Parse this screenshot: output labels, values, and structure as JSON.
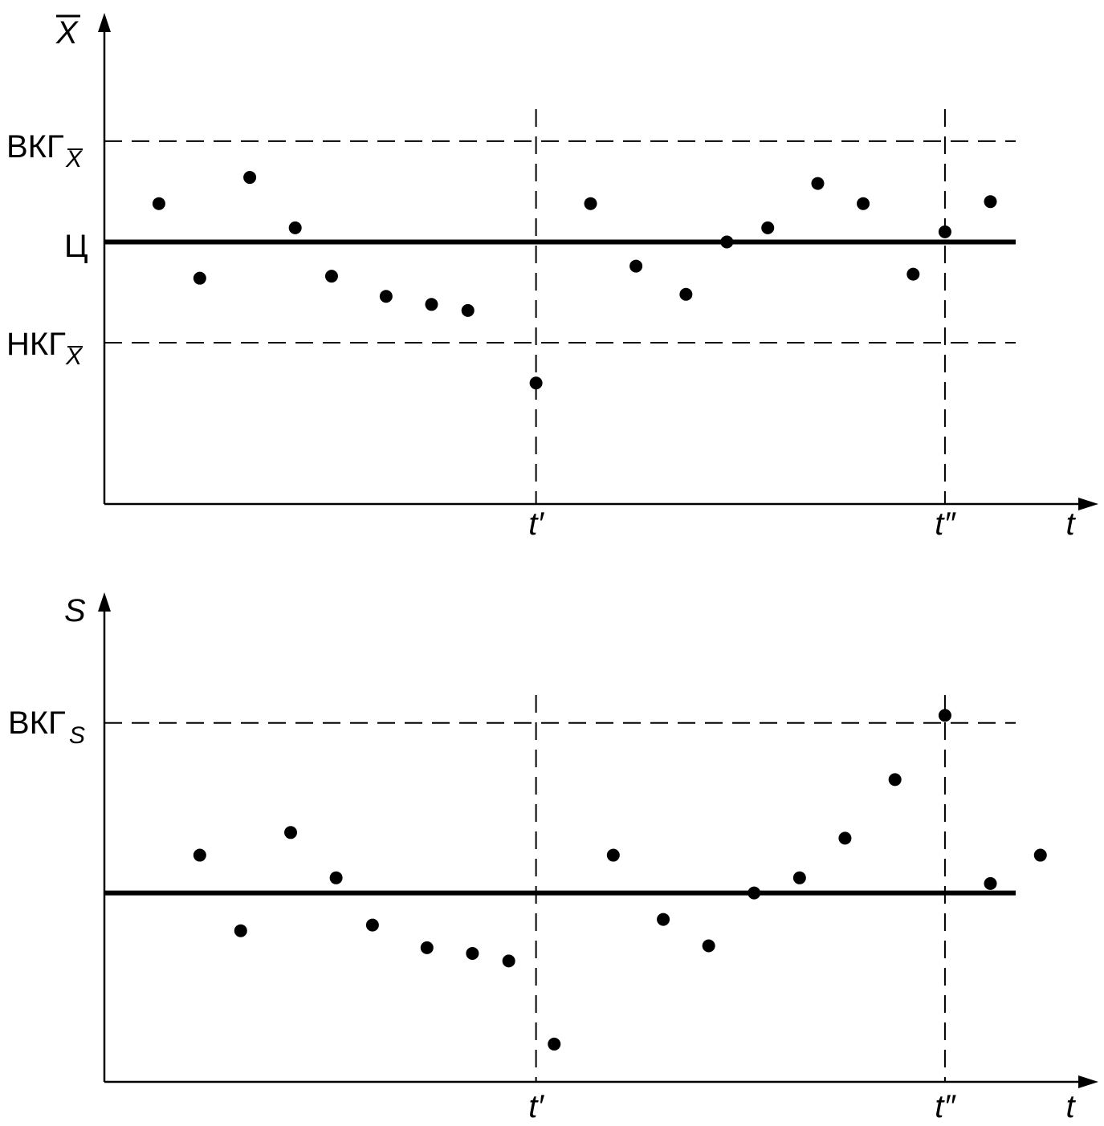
{
  "chart_data": [
    {
      "type": "scatter",
      "title": "",
      "xlabel": "t",
      "ylabel": "X̄",
      "ylabel_main": "X",
      "x_ticks": [
        "t′",
        "t″"
      ],
      "x_tick_positions": [
        9.5,
        18.5
      ],
      "xlim": [
        0,
        22
      ],
      "ylim": [
        -6.5,
        6
      ],
      "grid": false,
      "reference_lines": {
        "upper": {
          "label_main": "ВКГ",
          "label_sub": "X̄",
          "value": 2.5,
          "style": "dashed"
        },
        "center": {
          "label": "Ц",
          "value": 0,
          "style": "solid"
        },
        "lower": {
          "label_main": "НКГ",
          "label_sub": "X̄",
          "value": -2.5,
          "style": "dashed"
        }
      },
      "points": [
        {
          "x": 1.2,
          "y": 0.95
        },
        {
          "x": 2.1,
          "y": -0.9
        },
        {
          "x": 3.2,
          "y": 1.6
        },
        {
          "x": 4.2,
          "y": 0.35
        },
        {
          "x": 5.0,
          "y": -0.85
        },
        {
          "x": 6.2,
          "y": -1.35
        },
        {
          "x": 7.2,
          "y": -1.55
        },
        {
          "x": 8.0,
          "y": -1.7
        },
        {
          "x": 9.5,
          "y": -3.5
        },
        {
          "x": 10.7,
          "y": 0.95
        },
        {
          "x": 11.7,
          "y": -0.6
        },
        {
          "x": 12.8,
          "y": -1.3
        },
        {
          "x": 13.7,
          "y": 0
        },
        {
          "x": 14.6,
          "y": 0.35
        },
        {
          "x": 15.7,
          "y": 1.45
        },
        {
          "x": 16.7,
          "y": 0.95
        },
        {
          "x": 17.8,
          "y": -0.8
        },
        {
          "x": 18.5,
          "y": 0.25
        },
        {
          "x": 19.5,
          "y": 1.0
        }
      ]
    },
    {
      "type": "scatter",
      "title": "",
      "xlabel": "t",
      "ylabel": "S",
      "x_ticks": [
        "t′",
        "t″"
      ],
      "x_tick_positions": [
        9.5,
        18.5
      ],
      "xlim": [
        0,
        22
      ],
      "ylim": [
        -5,
        8
      ],
      "grid": false,
      "reference_lines": {
        "upper": {
          "label_main": "ВКГ",
          "label_sub": "S",
          "value": 4.5,
          "style": "dashed"
        },
        "center": {
          "value": 0,
          "style": "solid"
        }
      },
      "points": [
        {
          "x": 2.1,
          "y": 1.0
        },
        {
          "x": 3.0,
          "y": -1.0
        },
        {
          "x": 4.1,
          "y": 1.6
        },
        {
          "x": 5.1,
          "y": 0.4
        },
        {
          "x": 5.9,
          "y": -0.85
        },
        {
          "x": 7.1,
          "y": -1.45
        },
        {
          "x": 8.1,
          "y": -1.6
        },
        {
          "x": 8.9,
          "y": -1.8
        },
        {
          "x": 9.9,
          "y": -4.0
        },
        {
          "x": 11.2,
          "y": 1.0
        },
        {
          "x": 12.3,
          "y": -0.7
        },
        {
          "x": 13.3,
          "y": -1.4
        },
        {
          "x": 14.3,
          "y": 0
        },
        {
          "x": 15.3,
          "y": 0.4
        },
        {
          "x": 16.3,
          "y": 1.45
        },
        {
          "x": 17.4,
          "y": 3.0
        },
        {
          "x": 18.5,
          "y": 4.7
        },
        {
          "x": 19.5,
          "y": 0.25
        },
        {
          "x": 20.6,
          "y": 1.0
        }
      ]
    }
  ]
}
